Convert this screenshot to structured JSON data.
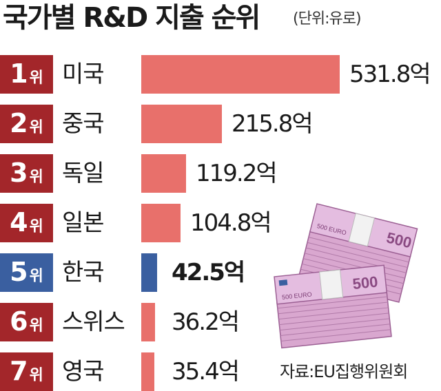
{
  "title": "국가별 R&D 지출 순위",
  "unit_note": "(단위:유로)",
  "source": "자료:EU집행위원회",
  "colors": {
    "rank_badge": "#a3262a",
    "rank_badge_highlight": "#3a5fa0",
    "bar": "#e8706b",
    "bar_highlight": "#3a5fa0"
  },
  "chart_data": {
    "type": "bar",
    "orientation": "horizontal",
    "title": "국가별 R&D 지출 순위",
    "unit": "(단위:유로)",
    "xlim": [
      0,
      531.8
    ],
    "grid": false,
    "rows": [
      {
        "rank": "1",
        "rank_suffix": "위",
        "country": "미국",
        "value": 531.8,
        "label": "531.8억",
        "highlight": false
      },
      {
        "rank": "2",
        "rank_suffix": "위",
        "country": "중국",
        "value": 215.8,
        "label": "215.8억",
        "highlight": false
      },
      {
        "rank": "3",
        "rank_suffix": "위",
        "country": "독일",
        "value": 119.2,
        "label": "119.2억",
        "highlight": false
      },
      {
        "rank": "4",
        "rank_suffix": "위",
        "country": "일본",
        "value": 104.8,
        "label": "104.8억",
        "highlight": false
      },
      {
        "rank": "5",
        "rank_suffix": "위",
        "country": "한국",
        "value": 42.5,
        "label": "42.5억",
        "highlight": true
      },
      {
        "rank": "6",
        "rank_suffix": "위",
        "country": "스위스",
        "value": 36.2,
        "label": "36.2억",
        "highlight": false
      },
      {
        "rank": "7",
        "rank_suffix": "위",
        "country": "영국",
        "value": 35.4,
        "label": "35.4억",
        "highlight": false
      }
    ]
  },
  "illustration": {
    "icon": "euro-banknote-stacks-icon",
    "note_text": "500 EURO",
    "note_color": "#c48ac0"
  }
}
